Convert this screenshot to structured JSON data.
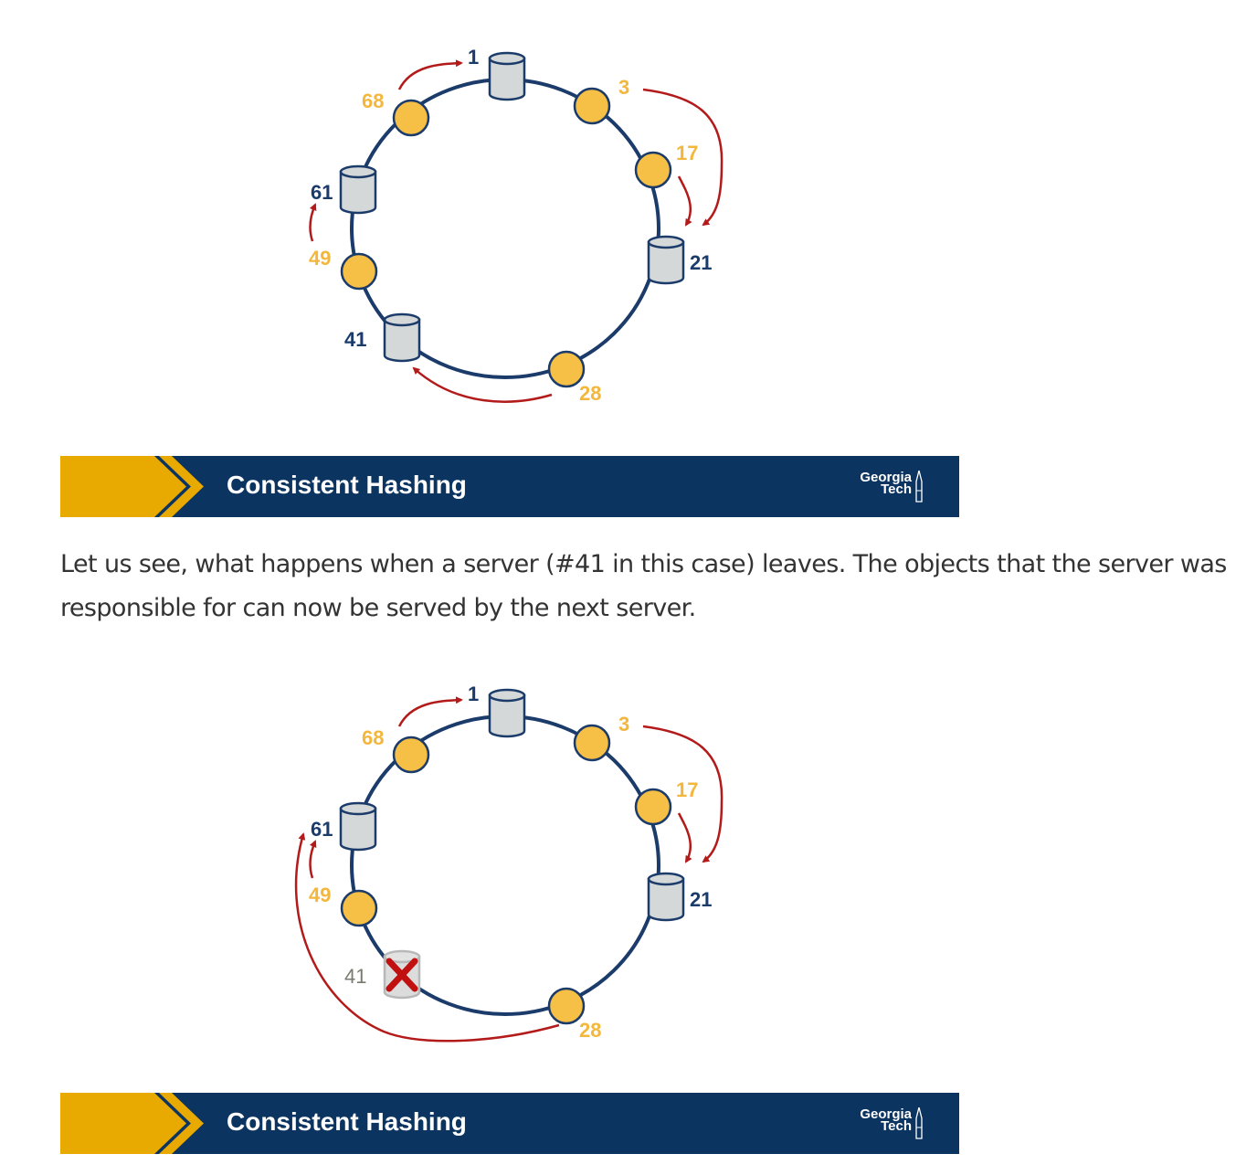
{
  "diagram1": {
    "objects": [
      {
        "id": "68",
        "label": "68"
      },
      {
        "id": "3",
        "label": "3"
      },
      {
        "id": "17",
        "label": "17"
      },
      {
        "id": "49",
        "label": "49"
      },
      {
        "id": "28",
        "label": "28"
      }
    ],
    "servers": [
      {
        "id": "1",
        "label": "1"
      },
      {
        "id": "21",
        "label": "21"
      },
      {
        "id": "41",
        "label": "41"
      },
      {
        "id": "61",
        "label": "61"
      }
    ]
  },
  "banner1": {
    "title": "Consistent Hashing",
    "logo_line1": "Georgia",
    "logo_line2": "Tech"
  },
  "paragraph": "Let us see, what happens when a server (#41 in this case) leaves. The objects that the server was responsible for can now be served by the next server.",
  "diagram2": {
    "objects": [
      {
        "id": "68",
        "label": "68"
      },
      {
        "id": "3",
        "label": "3"
      },
      {
        "id": "17",
        "label": "17"
      },
      {
        "id": "49",
        "label": "49"
      },
      {
        "id": "28",
        "label": "28"
      }
    ],
    "servers": [
      {
        "id": "1",
        "label": "1"
      },
      {
        "id": "21",
        "label": "21"
      },
      {
        "id": "41",
        "label": "41",
        "removed": true
      },
      {
        "id": "61",
        "label": "61"
      }
    ]
  },
  "banner2": {
    "title": "Consistent Hashing",
    "logo_line1": "Georgia",
    "logo_line2": "Tech"
  },
  "colors": {
    "ring": "#1b3b6a",
    "object_fill": "#f6bf45",
    "object_label": "#f3b73d",
    "server_label": "#1b3b6a",
    "arrow": "#b31b1b",
    "banner_bg": "#0c3460",
    "banner_chevron": "#e8a900"
  }
}
